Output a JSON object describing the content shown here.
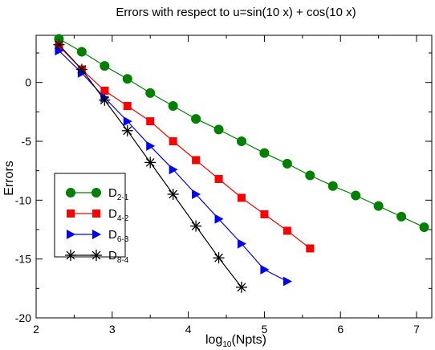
{
  "chart_data": {
    "type": "line",
    "title": "Errors with respect to u=sin(10 x) + cos(10 x)",
    "xlabel_main": "log",
    "xlabel_sub": "10",
    "xlabel_tail": "(Npts)",
    "ylabel": "Errors",
    "xlim": [
      2,
      7.2
    ],
    "ylim": [
      -20,
      4
    ],
    "xticks": [
      "2",
      "3",
      "4",
      "5",
      "6",
      "7"
    ],
    "yticks": [
      "0",
      "-5",
      "-10",
      "-15",
      "-20"
    ],
    "legend_placement": "lower-left",
    "series": [
      {
        "name_main": "D",
        "name_sub": "2-1",
        "color": "#008000",
        "marker": "circle",
        "x": [
          2.3,
          2.6,
          2.9,
          3.2,
          3.5,
          3.8,
          4.1,
          4.4,
          4.7,
          5.0,
          5.3,
          5.6,
          5.9,
          6.2,
          6.5,
          6.8,
          7.1
        ],
        "y": [
          3.7,
          2.6,
          1.4,
          0.3,
          -0.9,
          -2.0,
          -3.1,
          -4.0,
          -5.0,
          -6.0,
          -6.9,
          -7.9,
          -8.8,
          -9.6,
          -10.5,
          -11.4,
          -12.3
        ]
      },
      {
        "name_main": "D",
        "name_sub": "4-2",
        "color": "#ff0000",
        "marker": "square",
        "x": [
          2.3,
          2.6,
          2.9,
          3.2,
          3.5,
          3.8,
          4.1,
          4.4,
          4.7,
          5.0,
          5.3,
          5.6
        ],
        "y": [
          3.1,
          1.1,
          -0.7,
          -2.0,
          -3.3,
          -5.0,
          -6.6,
          -8.2,
          -9.8,
          -11.2,
          -12.6,
          -14.1
        ]
      },
      {
        "name_main": "D",
        "name_sub": "6-3",
        "color": "#0000ff",
        "marker": "triangle-right",
        "x": [
          2.3,
          2.6,
          2.9,
          3.2,
          3.5,
          3.8,
          4.1,
          4.4,
          4.7,
          5.0,
          5.3
        ],
        "y": [
          2.7,
          0.8,
          -1.3,
          -3.3,
          -5.4,
          -7.4,
          -9.5,
          -11.6,
          -13.7,
          -15.9,
          -16.9
        ]
      },
      {
        "name_main": "D",
        "name_sub": "8-4",
        "color": "#000000",
        "marker": "asterisk",
        "x": [
          2.3,
          2.6,
          2.9,
          3.2,
          3.5,
          3.8,
          4.1,
          4.4,
          4.7
        ],
        "y": [
          3.2,
          1.1,
          -1.5,
          -4.1,
          -6.8,
          -9.5,
          -12.2,
          -14.9,
          -17.4
        ]
      }
    ]
  }
}
